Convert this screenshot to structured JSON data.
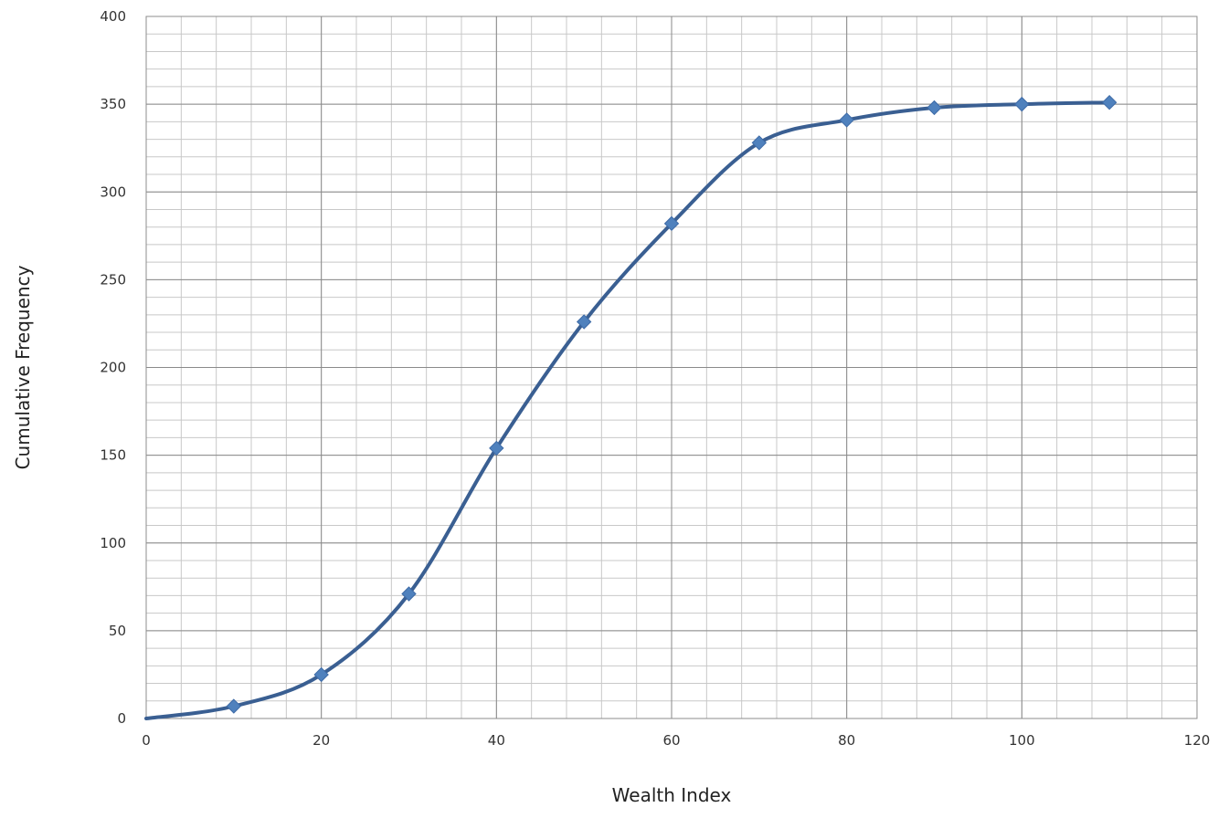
{
  "chart_data": {
    "type": "line",
    "title": "",
    "xlabel": "Wealth Index",
    "ylabel": "Cumulative Frequency",
    "xlim": [
      0,
      120
    ],
    "ylim": [
      0,
      400
    ],
    "x_major_ticks": [
      0,
      20,
      40,
      60,
      80,
      100,
      120
    ],
    "y_major_ticks": [
      0,
      50,
      100,
      150,
      200,
      250,
      300,
      350,
      400
    ],
    "x_minor_step": 4,
    "y_minor_step": 10,
    "grid": true,
    "smooth_line": true,
    "legend": "none",
    "series": [
      {
        "x": [
          0,
          10,
          20,
          30,
          40,
          50,
          60,
          70,
          80,
          90,
          100,
          110
        ],
        "y": [
          0,
          7,
          25,
          71,
          154,
          226,
          282,
          328,
          341,
          348,
          350,
          351
        ],
        "marker_x": [
          10,
          20,
          30,
          40,
          50,
          60,
          70,
          80,
          90,
          100,
          110
        ],
        "marker_y": [
          7,
          25,
          71,
          154,
          226,
          282,
          328,
          341,
          348,
          350,
          351
        ],
        "color": "#3a5f92",
        "marker_color": "#4f81bd",
        "marker": "diamond"
      }
    ]
  }
}
